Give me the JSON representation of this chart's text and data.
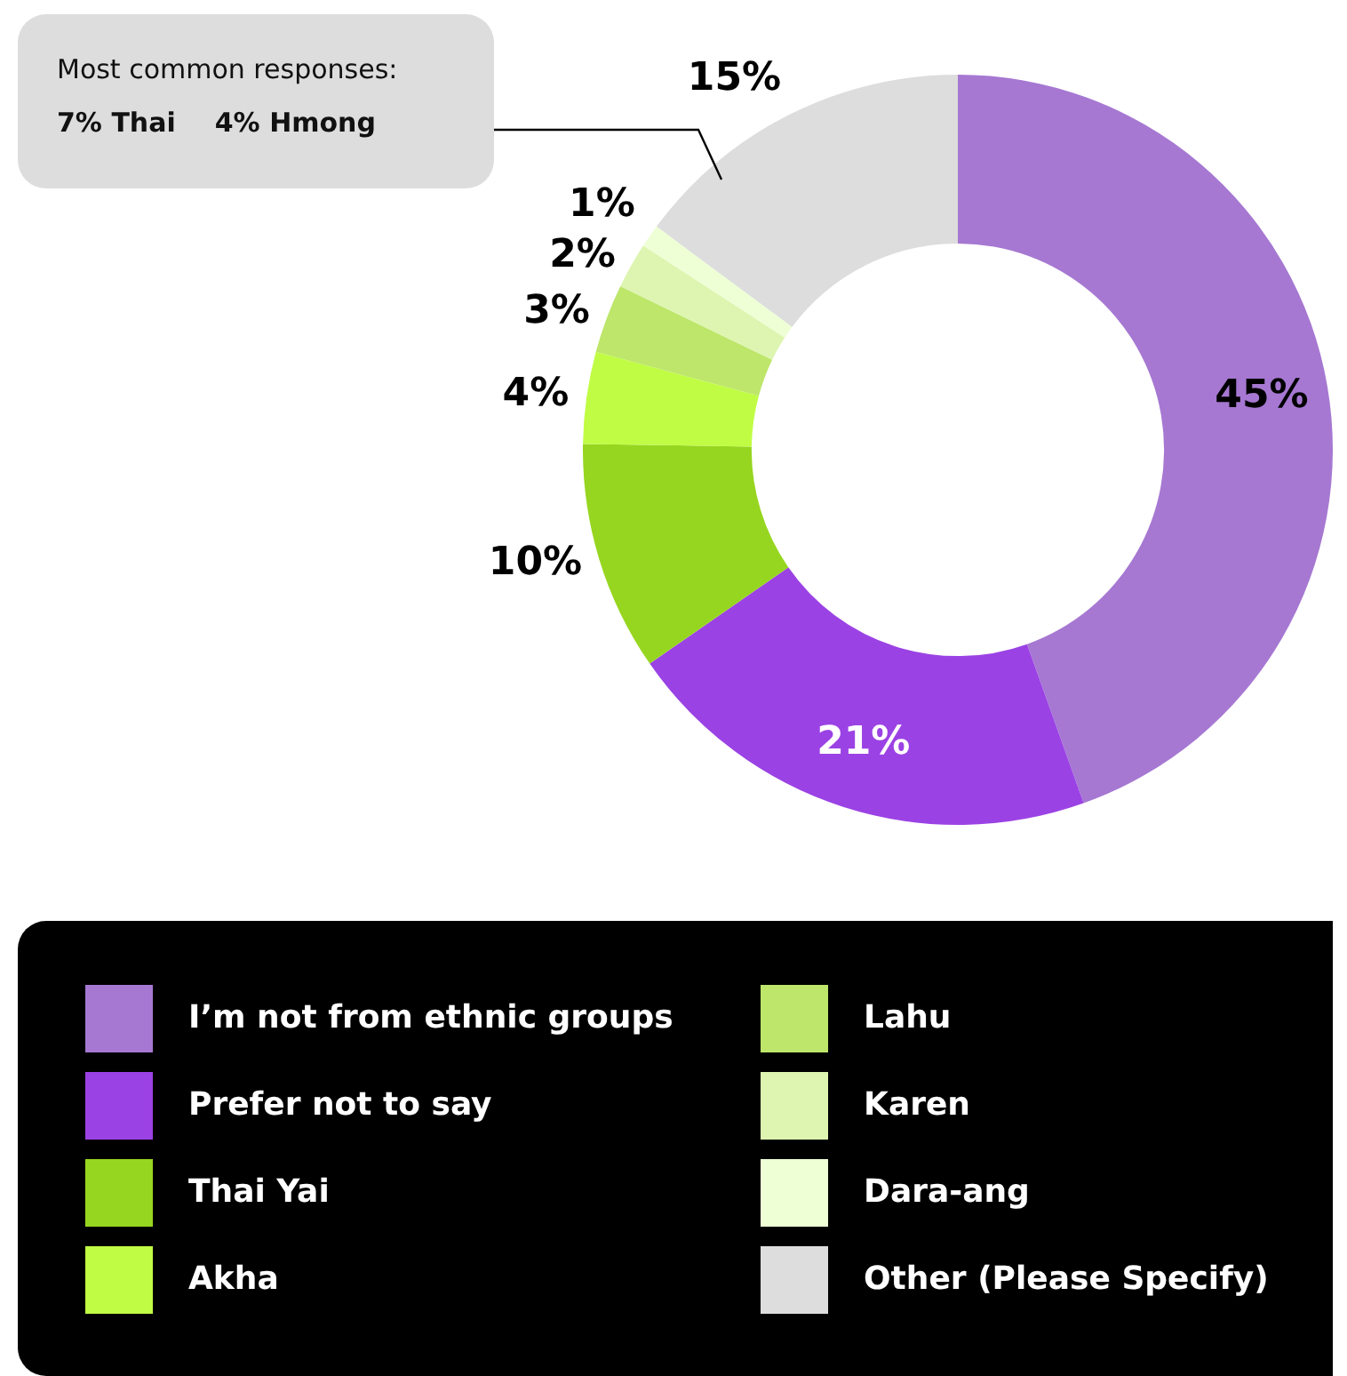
{
  "chart_data": {
    "type": "donut",
    "categories": [
      "I’m not from ethnic groups",
      "Prefer not to say",
      "Thai Yai",
      "Akha",
      "Lahu",
      "Karen",
      "Dara-ang",
      "Other (Please Specify)"
    ],
    "values": [
      45,
      21,
      10,
      4,
      3,
      2,
      1,
      15
    ],
    "colors": [
      "#a678d2",
      "#9b42e4",
      "#96d620",
      "#c0fc44",
      "#bde66a",
      "#ddf5b0",
      "#eeffd6",
      "#dddddd"
    ],
    "value_labels": [
      "45%",
      "21%",
      "10%",
      "4%",
      "3%",
      "2%",
      "1%",
      "15%"
    ],
    "annotations": [
      "Most common responses:",
      "7% Thai",
      "4% Hmong"
    ],
    "legend": "bottom"
  }
}
